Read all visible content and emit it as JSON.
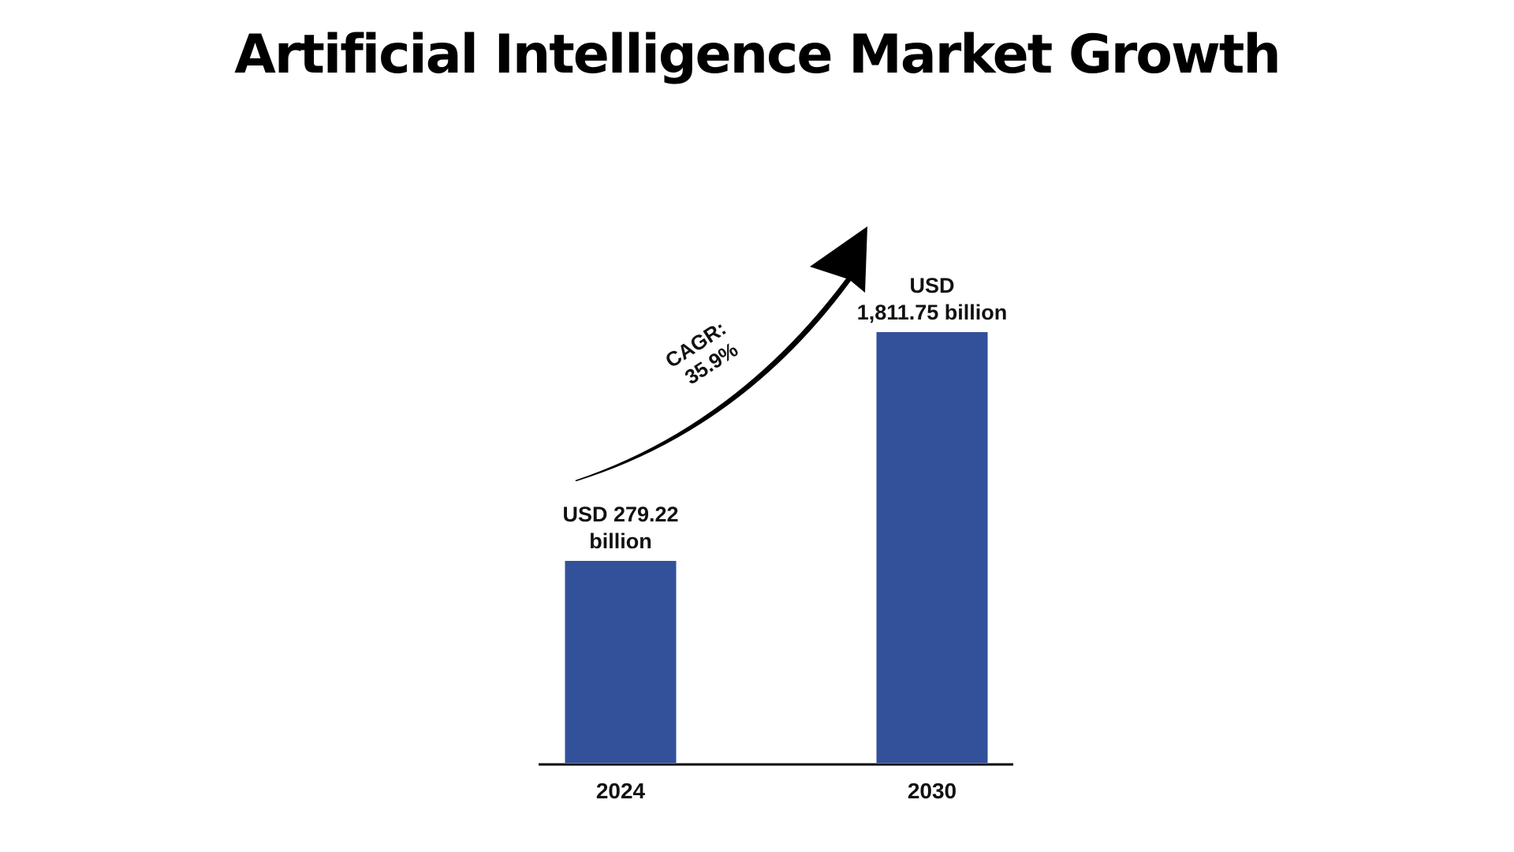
{
  "title": "Artificial Intelligence Market Growth",
  "chart_data": {
    "type": "bar",
    "title": "Artificial Intelligence Market Growth",
    "categories": [
      "2024",
      "2030"
    ],
    "values": [
      279.22,
      1811.75
    ],
    "unit": "USD billion",
    "data_labels": [
      [
        "USD 279.22",
        "billion"
      ],
      [
        "USD",
        "1,811.75 billion"
      ]
    ],
    "annotation": {
      "lines": [
        "CAGR:",
        "35.9%"
      ],
      "value_percent": 35.9
    },
    "xlabel": "",
    "ylabel": "",
    "grid": false,
    "legend": "none",
    "colors": {
      "bar": "#33509A",
      "axis": "#000000",
      "arrow": "#000000"
    }
  }
}
